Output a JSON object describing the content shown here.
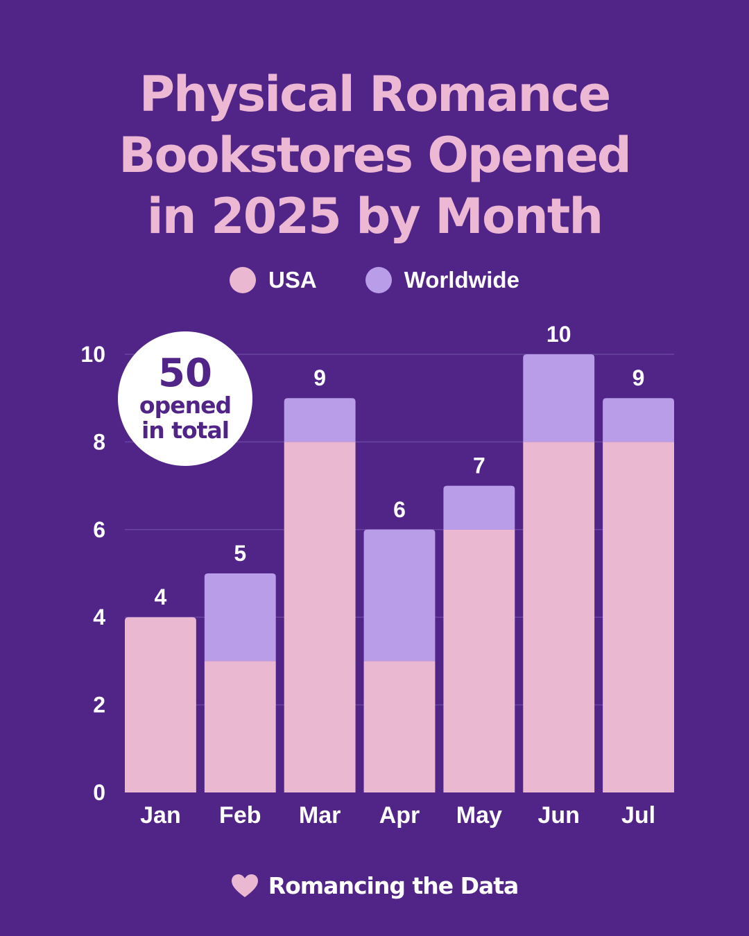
{
  "title_lines": [
    "Physical Romance",
    "Bookstores Opened",
    "in 2025 by Month"
  ],
  "badge": {
    "number": "50",
    "text_line1": "opened",
    "text_line2": "in total"
  },
  "footer": {
    "brand": "Romancing the Data",
    "icon": "heart-icon"
  },
  "colors": {
    "background": "#512587",
    "usa": "#EBB8D2",
    "worldwide": "#B99DE8",
    "title": "#EDB8D4",
    "grid": "#6A45A0"
  },
  "chart_data": {
    "type": "bar",
    "stacked": true,
    "categories": [
      "Jan",
      "Feb",
      "Mar",
      "Apr",
      "May",
      "Jun",
      "Jul"
    ],
    "series": [
      {
        "name": "USA",
        "values": [
          4,
          3,
          8,
          3,
          6,
          8,
          8
        ]
      },
      {
        "name": "Worldwide",
        "values": [
          0,
          2,
          1,
          3,
          1,
          2,
          1
        ]
      }
    ],
    "totals": [
      4,
      5,
      9,
      6,
      7,
      10,
      9
    ],
    "ylim": [
      0,
      10
    ],
    "yticks": [
      0,
      2,
      4,
      6,
      8,
      10
    ],
    "grid": true,
    "legend": "top-center",
    "title": "Physical Romance Bookstores Opened in 2025 by Month",
    "xlabel": "",
    "ylabel": ""
  }
}
